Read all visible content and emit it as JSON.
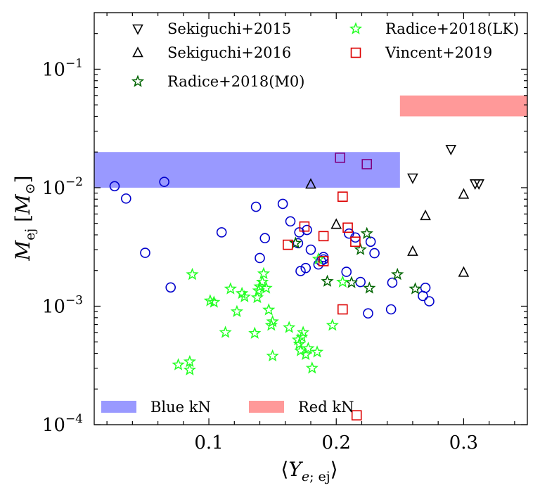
{
  "chart_data": {
    "type": "scatter",
    "title": "",
    "xlabel": "⟨Y_{e;ej}⟩",
    "ylabel": "M_ej [M_⊙]",
    "x_scale": "linear",
    "y_scale": "log",
    "xlim": [
      0.01,
      0.35
    ],
    "ylim": [
      0.0001,
      0.3
    ],
    "x_ticks": [
      {
        "value": 0.1,
        "label": "0.1"
      },
      {
        "value": 0.2,
        "label": "0.2"
      },
      {
        "value": 0.3,
        "label": "0.3"
      }
    ],
    "y_ticks": [
      {
        "value": 0.1,
        "base": "10",
        "exp": "−1"
      },
      {
        "value": 0.01,
        "base": "10",
        "exp": "−2"
      },
      {
        "value": 0.001,
        "base": "10",
        "exp": "−3"
      },
      {
        "value": 0.0001,
        "base": "10",
        "exp": "−4"
      }
    ],
    "grid": false,
    "legend_top": {
      "placement": "top",
      "columns": 2
    },
    "legend_bottom": {
      "placement": "bottom-left",
      "columns": 2
    },
    "bands": [
      {
        "name": "Blue kN",
        "color": "#9999ff",
        "x": [
          0.01,
          0.25
        ],
        "y": [
          0.01,
          0.02
        ]
      },
      {
        "name": "Red kN",
        "color": "#ff9999",
        "x": [
          0.25,
          0.35
        ],
        "y": [
          0.04,
          0.06
        ]
      }
    ],
    "series": [
      {
        "marker": "circle",
        "color": "#0000cc",
        "filled": false,
        "points": [
          [
            0.026,
            0.0103
          ],
          [
            0.065,
            0.0112
          ],
          [
            0.035,
            0.0081
          ],
          [
            0.05,
            0.00282
          ],
          [
            0.07,
            0.00144
          ],
          [
            0.11,
            0.0042
          ],
          [
            0.137,
            0.0069
          ],
          [
            0.14,
            0.00255
          ],
          [
            0.144,
            0.00375
          ],
          [
            0.158,
            0.0073
          ],
          [
            0.164,
            0.0052
          ],
          [
            0.17,
            0.0034
          ],
          [
            0.171,
            0.0042
          ],
          [
            0.172,
            0.00198
          ],
          [
            0.176,
            0.0021
          ],
          [
            0.177,
            0.0044
          ],
          [
            0.18,
            0.003
          ],
          [
            0.186,
            0.00225
          ],
          [
            0.188,
            0.0024
          ],
          [
            0.19,
            0.0026
          ],
          [
            0.19,
            0.00248
          ],
          [
            0.208,
            0.00195
          ],
          [
            0.21,
            0.0041
          ],
          [
            0.215,
            0.0038
          ],
          [
            0.219,
            0.0016
          ],
          [
            0.225,
            0.00087
          ],
          [
            0.227,
            0.0035
          ],
          [
            0.23,
            0.0028
          ],
          [
            0.243,
            0.00094
          ],
          [
            0.244,
            0.00158
          ],
          [
            0.268,
            0.00122
          ],
          [
            0.27,
            0.00143
          ],
          [
            0.273,
            0.0011
          ]
        ]
      },
      {
        "name": "Sekiguchi+2015",
        "marker": "triangle-down",
        "color": "#000000",
        "filled": false,
        "points": [
          [
            0.26,
            0.0121
          ],
          [
            0.29,
            0.0211
          ],
          [
            0.309,
            0.0108
          ],
          [
            0.312,
            0.0108
          ]
        ]
      },
      {
        "name": "Sekiguchi+2016",
        "marker": "triangle-up",
        "color": "#000000",
        "filled": false,
        "points": [
          [
            0.18,
            0.0107
          ],
          [
            0.2,
            0.0049
          ],
          [
            0.26,
            0.0029
          ],
          [
            0.27,
            0.0058
          ],
          [
            0.3,
            0.0088
          ],
          [
            0.3,
            0.00193
          ]
        ]
      },
      {
        "name": "Radice+2018(M0)",
        "marker": "star",
        "color": "#006400",
        "filled": false,
        "points": [
          [
            0.168,
            0.0034
          ],
          [
            0.193,
            0.00162
          ],
          [
            0.212,
            0.00158
          ],
          [
            0.219,
            0.003
          ],
          [
            0.224,
            0.0041
          ],
          [
            0.226,
            0.00142
          ],
          [
            0.248,
            0.00185
          ],
          [
            0.262,
            0.0014
          ]
        ]
      },
      {
        "name": "Radice+2018(LK)",
        "marker": "star",
        "color": "#22ff22",
        "filled": false,
        "points": [
          [
            0.076,
            0.00032
          ],
          [
            0.085,
            0.00034
          ],
          [
            0.085,
            0.00029
          ],
          [
            0.087,
            0.00185
          ],
          [
            0.101,
            0.00111
          ],
          [
            0.104,
            0.00108
          ],
          [
            0.113,
            0.0006
          ],
          [
            0.117,
            0.0014
          ],
          [
            0.122,
            0.0009
          ],
          [
            0.126,
            0.00128
          ],
          [
            0.128,
            0.0012
          ],
          [
            0.136,
            0.00059
          ],
          [
            0.138,
            0.00118
          ],
          [
            0.139,
            0.00135
          ],
          [
            0.14,
            0.00146
          ],
          [
            0.142,
            0.0016
          ],
          [
            0.143,
            0.00188
          ],
          [
            0.145,
            0.00142
          ],
          [
            0.147,
            0.00093
          ],
          [
            0.149,
            0.00069
          ],
          [
            0.15,
            0.00074
          ],
          [
            0.15,
            0.00038
          ],
          [
            0.163,
            0.00066
          ],
          [
            0.17,
            0.00052
          ],
          [
            0.171,
            0.00048
          ],
          [
            0.172,
            0.00042
          ],
          [
            0.173,
            0.00055
          ],
          [
            0.174,
            0.0006
          ],
          [
            0.176,
            0.00039
          ],
          [
            0.178,
            0.00044
          ],
          [
            0.181,
            0.0003
          ],
          [
            0.185,
            0.00041
          ],
          [
            0.186,
            0.0025
          ],
          [
            0.197,
            0.00069
          ],
          [
            0.205,
            0.0016
          ]
        ]
      },
      {
        "name": "Vincent+2019",
        "marker": "square",
        "color": "#dd0000",
        "filled": false,
        "points": [
          [
            0.162,
            0.0033
          ],
          [
            0.175,
            0.0047
          ],
          [
            0.19,
            0.0039
          ],
          [
            0.19,
            0.0024
          ],
          [
            0.205,
            0.0084
          ],
          [
            0.209,
            0.0046
          ],
          [
            0.215,
            0.0035
          ],
          [
            0.205,
            0.00094
          ],
          [
            0.216,
            0.00012
          ]
        ]
      },
      {
        "marker": "square",
        "color": "#800080",
        "filled": false,
        "points": [
          [
            0.203,
            0.0179
          ],
          [
            0.224,
            0.0158
          ]
        ]
      }
    ]
  }
}
